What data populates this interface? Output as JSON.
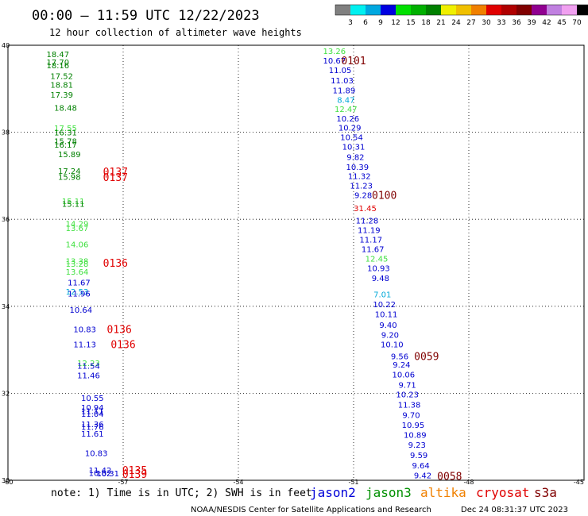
{
  "header": {
    "title": "00:00 – 11:59 UTC 12/22/2023",
    "subtitle": "12 hour collection of altimeter wave heights"
  },
  "scale_bar": {
    "colors": [
      "#808080",
      "#00f0f0",
      "#00a8e0",
      "#0000e0",
      "#00e000",
      "#00b000",
      "#008000",
      "#f0f000",
      "#f0c000",
      "#f08000",
      "#e00000",
      "#b00000",
      "#800000",
      "#900090",
      "#c080e0",
      "#f0a0f0",
      "#000000"
    ],
    "labels": [
      "3",
      "6",
      "9",
      "12",
      "15",
      "18",
      "21",
      "24",
      "27",
      "30",
      "33",
      "36",
      "39",
      "42",
      "45",
      "70"
    ],
    "unit": "(ft)"
  },
  "footer": {
    "note": "note: 1) Time is in UTC; 2) SWH is in feet",
    "missions": [
      {
        "name": "jason2",
        "color": "#0000d8"
      },
      {
        "name": "jason3",
        "color": "#009000"
      },
      {
        "name": "altika",
        "color": "#f08000"
      },
      {
        "name": "cryosat",
        "color": "#e00000"
      },
      {
        "name": "s3a",
        "color": "#800000"
      }
    ],
    "credit": "NOAA/NESDIS Center for Satellite Applications and Research",
    "timestamp": "Dec 24 08:31:37 UTC 2023"
  },
  "chart_data": {
    "type": "scatter",
    "title": "00:00 – 11:59 UTC 12/22/2023",
    "subtitle": "12 hour collection of altimeter wave heights",
    "xlim": [
      -60,
      -45
    ],
    "ylim": [
      30,
      40
    ],
    "x_ticks": [
      "-60",
      "-57",
      "-54",
      "-51",
      "-48",
      "-45"
    ],
    "y_ticks": [
      "30",
      "32",
      "34",
      "36",
      "38",
      "40"
    ],
    "grid": true,
    "unit": "ft",
    "colors": {
      "green": "#008000",
      "lightgreen": "#40e040",
      "blue": "#0000d0",
      "cyan": "#00a8d8",
      "red": "#e00000"
    },
    "points": [
      {
        "lon": -58.7,
        "lat": 39.8,
        "v": "18.47",
        "c": "green"
      },
      {
        "lon": -58.7,
        "lat": 39.62,
        "v": "17.70",
        "c": "green"
      },
      {
        "lon": -58.7,
        "lat": 39.54,
        "v": "18.16",
        "c": "green"
      },
      {
        "lon": -58.6,
        "lat": 39.3,
        "v": "17.52",
        "c": "green"
      },
      {
        "lon": -58.6,
        "lat": 39.1,
        "v": "18.81",
        "c": "green"
      },
      {
        "lon": -58.6,
        "lat": 38.87,
        "v": "17.39",
        "c": "green"
      },
      {
        "lon": -58.5,
        "lat": 38.57,
        "v": "18.48",
        "c": "green"
      },
      {
        "lon": -58.5,
        "lat": 38.1,
        "v": "17.55",
        "c": "lightgreen"
      },
      {
        "lon": -58.5,
        "lat": 38.0,
        "v": "16.31",
        "c": "green"
      },
      {
        "lon": -58.5,
        "lat": 37.8,
        "v": "15.78",
        "c": "green"
      },
      {
        "lon": -58.5,
        "lat": 37.72,
        "v": "16.17",
        "c": "green"
      },
      {
        "lon": -58.4,
        "lat": 37.5,
        "v": "15.89",
        "c": "green"
      },
      {
        "lon": -58.4,
        "lat": 37.12,
        "v": "17.24",
        "c": "green"
      },
      {
        "lon": -58.4,
        "lat": 36.98,
        "v": "15.98",
        "c": "green"
      },
      {
        "lon": -58.3,
        "lat": 36.42,
        "v": "15.11",
        "c": "lightgreen"
      },
      {
        "lon": -58.3,
        "lat": 36.36,
        "v": "15.11",
        "c": "green"
      },
      {
        "lon": -58.2,
        "lat": 35.9,
        "v": "14.29",
        "c": "lightgreen"
      },
      {
        "lon": -58.2,
        "lat": 35.8,
        "v": "13.67",
        "c": "lightgreen"
      },
      {
        "lon": -58.2,
        "lat": 35.43,
        "v": "14.06",
        "c": "lightgreen"
      },
      {
        "lon": -58.2,
        "lat": 35.05,
        "v": "13.38",
        "c": "lightgreen"
      },
      {
        "lon": -58.2,
        "lat": 34.98,
        "v": "13.28",
        "c": "lightgreen"
      },
      {
        "lon": -58.2,
        "lat": 34.8,
        "v": "13.64",
        "c": "lightgreen"
      },
      {
        "lon": -58.15,
        "lat": 34.55,
        "v": "11.67",
        "c": "blue"
      },
      {
        "lon": -58.2,
        "lat": 34.34,
        "v": "12.53",
        "c": "cyan"
      },
      {
        "lon": -58.15,
        "lat": 34.3,
        "v": "11.96",
        "c": "blue"
      },
      {
        "lon": -58.1,
        "lat": 33.92,
        "v": "10.64",
        "c": "blue"
      },
      {
        "lon": -58.0,
        "lat": 33.48,
        "v": "10.83",
        "c": "blue"
      },
      {
        "lon": -58.0,
        "lat": 33.13,
        "v": "11.13",
        "c": "blue"
      },
      {
        "lon": -57.9,
        "lat": 32.7,
        "v": "12.23",
        "c": "lightgreen"
      },
      {
        "lon": -57.9,
        "lat": 32.64,
        "v": "11.54",
        "c": "blue"
      },
      {
        "lon": -57.9,
        "lat": 32.42,
        "v": "11.46",
        "c": "blue"
      },
      {
        "lon": -57.8,
        "lat": 31.9,
        "v": "10.55",
        "c": "blue"
      },
      {
        "lon": -57.8,
        "lat": 31.68,
        "v": "10.94",
        "c": "blue"
      },
      {
        "lon": -57.8,
        "lat": 31.6,
        "v": "11.11",
        "c": "blue"
      },
      {
        "lon": -57.8,
        "lat": 31.53,
        "v": "11.04",
        "c": "blue"
      },
      {
        "lon": -57.8,
        "lat": 31.3,
        "v": "11.36",
        "c": "blue"
      },
      {
        "lon": -57.8,
        "lat": 31.23,
        "v": "11.76",
        "c": "blue"
      },
      {
        "lon": -57.8,
        "lat": 31.08,
        "v": "11.61",
        "c": "blue"
      },
      {
        "lon": -57.7,
        "lat": 30.63,
        "v": "10.83",
        "c": "blue"
      },
      {
        "lon": -57.6,
        "lat": 30.24,
        "v": "11.42",
        "c": "blue"
      },
      {
        "lon": -57.6,
        "lat": 30.17,
        "v": "10.82",
        "c": "blue"
      },
      {
        "lon": -57.4,
        "lat": 30.16,
        "v": "10.31",
        "c": "blue"
      },
      {
        "lon": -51.5,
        "lat": 39.87,
        "v": "13.26",
        "c": "lightgreen"
      },
      {
        "lon": -51.5,
        "lat": 39.65,
        "v": "10.67",
        "c": "blue"
      },
      {
        "lon": -51.35,
        "lat": 39.43,
        "v": "11.05",
        "c": "blue"
      },
      {
        "lon": -51.3,
        "lat": 39.2,
        "v": "11.03",
        "c": "blue"
      },
      {
        "lon": -51.25,
        "lat": 38.97,
        "v": "11.89",
        "c": "blue"
      },
      {
        "lon": -51.2,
        "lat": 38.75,
        "v": "8.47",
        "c": "cyan"
      },
      {
        "lon": -51.2,
        "lat": 38.54,
        "v": "12.47",
        "c": "lightgreen"
      },
      {
        "lon": -51.15,
        "lat": 38.32,
        "v": "10.26",
        "c": "blue"
      },
      {
        "lon": -51.1,
        "lat": 38.11,
        "v": "10.29",
        "c": "blue"
      },
      {
        "lon": -51.05,
        "lat": 37.89,
        "v": "10.54",
        "c": "blue"
      },
      {
        "lon": -51.0,
        "lat": 37.67,
        "v": "10.31",
        "c": "blue"
      },
      {
        "lon": -50.95,
        "lat": 37.44,
        "v": "9.82",
        "c": "blue"
      },
      {
        "lon": -50.9,
        "lat": 37.21,
        "v": "10.39",
        "c": "blue"
      },
      {
        "lon": -50.85,
        "lat": 37.0,
        "v": "11.32",
        "c": "blue"
      },
      {
        "lon": -50.8,
        "lat": 36.78,
        "v": "11.23",
        "c": "blue"
      },
      {
        "lon": -50.75,
        "lat": 36.56,
        "v": "9.28",
        "c": "blue"
      },
      {
        "lon": -50.7,
        "lat": 36.26,
        "v": "31.45",
        "c": "red"
      },
      {
        "lon": -50.65,
        "lat": 35.98,
        "v": "11.28",
        "c": "blue"
      },
      {
        "lon": -50.6,
        "lat": 35.76,
        "v": "11.19",
        "c": "blue"
      },
      {
        "lon": -50.55,
        "lat": 35.54,
        "v": "11.17",
        "c": "blue"
      },
      {
        "lon": -50.5,
        "lat": 35.32,
        "v": "11.67",
        "c": "blue"
      },
      {
        "lon": -50.4,
        "lat": 35.1,
        "v": "12.45",
        "c": "lightgreen"
      },
      {
        "lon": -50.35,
        "lat": 34.88,
        "v": "10.93",
        "c": "blue"
      },
      {
        "lon": -50.3,
        "lat": 34.65,
        "v": "9.48",
        "c": "blue"
      },
      {
        "lon": -50.25,
        "lat": 34.28,
        "v": "7.01",
        "c": "cyan"
      },
      {
        "lon": -50.2,
        "lat": 34.05,
        "v": "10.22",
        "c": "blue"
      },
      {
        "lon": -50.15,
        "lat": 33.82,
        "v": "10.11",
        "c": "blue"
      },
      {
        "lon": -50.1,
        "lat": 33.58,
        "v": "9.40",
        "c": "blue"
      },
      {
        "lon": -50.05,
        "lat": 33.35,
        "v": "9.20",
        "c": "blue"
      },
      {
        "lon": -50.0,
        "lat": 33.13,
        "v": "10.10",
        "c": "blue"
      },
      {
        "lon": -49.8,
        "lat": 32.86,
        "v": "9.56",
        "c": "blue"
      },
      {
        "lon": -49.75,
        "lat": 32.66,
        "v": "9.24",
        "c": "blue"
      },
      {
        "lon": -49.7,
        "lat": 32.44,
        "v": "10.06",
        "c": "blue"
      },
      {
        "lon": -49.6,
        "lat": 32.2,
        "v": "9.71",
        "c": "blue"
      },
      {
        "lon": -49.6,
        "lat": 31.98,
        "v": "10.23",
        "c": "blue"
      },
      {
        "lon": -49.55,
        "lat": 31.74,
        "v": "11.38",
        "c": "blue"
      },
      {
        "lon": -49.5,
        "lat": 31.51,
        "v": "9.70",
        "c": "blue"
      },
      {
        "lon": -49.45,
        "lat": 31.28,
        "v": "10.95",
        "c": "blue"
      },
      {
        "lon": -49.4,
        "lat": 31.05,
        "v": "10.89",
        "c": "blue"
      },
      {
        "lon": -49.35,
        "lat": 30.82,
        "v": "9.23",
        "c": "blue"
      },
      {
        "lon": -49.3,
        "lat": 30.58,
        "v": "9.59",
        "c": "blue"
      },
      {
        "lon": -49.25,
        "lat": 30.35,
        "v": "9.64",
        "c": "blue"
      },
      {
        "lon": -49.2,
        "lat": 30.12,
        "v": "9.42",
        "c": "blue"
      }
    ],
    "passes": [
      {
        "lon": -51.0,
        "lat": 39.65,
        "label": "0101",
        "color": "#800000"
      },
      {
        "lon": -57.2,
        "lat": 37.1,
        "label": "0137",
        "color": "#e00000"
      },
      {
        "lon": -57.2,
        "lat": 36.97,
        "label": "0137",
        "color": "#e00000"
      },
      {
        "lon": -50.2,
        "lat": 36.56,
        "label": "0100",
        "color": "#800000"
      },
      {
        "lon": -57.2,
        "lat": 35.0,
        "label": "0136",
        "color": "#e00000"
      },
      {
        "lon": -57.1,
        "lat": 33.48,
        "label": "0136",
        "color": "#e00000"
      },
      {
        "lon": -57.0,
        "lat": 33.13,
        "label": "0136",
        "color": "#e00000"
      },
      {
        "lon": -49.1,
        "lat": 32.86,
        "label": "0059",
        "color": "#800000"
      },
      {
        "lon": -56.7,
        "lat": 30.24,
        "label": "0135",
        "color": "#e00000"
      },
      {
        "lon": -56.7,
        "lat": 30.15,
        "label": "0139",
        "color": "#e00000"
      },
      {
        "lon": -48.5,
        "lat": 30.1,
        "label": "0058",
        "color": "#800000"
      }
    ]
  }
}
